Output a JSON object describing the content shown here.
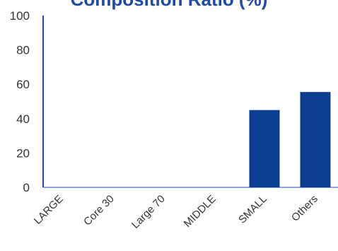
{
  "chart_data": {
    "type": "bar",
    "title": "Composition Ratio (%)",
    "categories": [
      "LARGE",
      "Core 30",
      "Large 70",
      "MIDDLE",
      "SMALL",
      "Others"
    ],
    "series": [
      {
        "values": [
          0,
          0,
          0,
          0,
          45,
          55.5
        ]
      }
    ],
    "ylim": [
      0,
      100
    ],
    "yticks": [
      0,
      20,
      40,
      60,
      80,
      100
    ],
    "xlabel": "",
    "ylabel": "",
    "grid": false,
    "legend": "none",
    "colors": {
      "bar": "#0b3d91",
      "axis": "#1f4aa8",
      "tick_text": "#333333",
      "title": "#1f4aa8"
    }
  }
}
